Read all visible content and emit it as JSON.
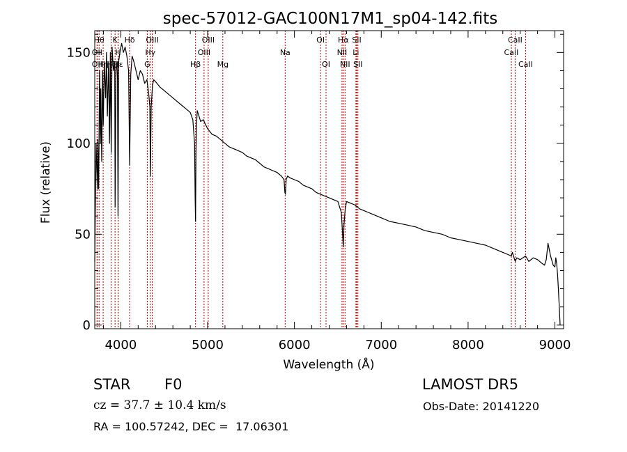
{
  "chart_data": {
    "type": "line",
    "title": "spec-57012-GAC100N17M1_sp04-142.fits",
    "xlabel": "Wavelength (Å)",
    "ylabel": "Flux (relative)",
    "xlim": [
      3700,
      9100
    ],
    "ylim": [
      -2,
      162
    ],
    "xticks": [
      4000,
      5000,
      6000,
      7000,
      8000,
      9000
    ],
    "yticks": [
      0,
      50,
      100,
      150
    ],
    "line_color": "#000000",
    "marker_color": "#aa0000",
    "series": [
      {
        "x": [
          3700,
          3715,
          3730,
          3735,
          3745,
          3755,
          3765,
          3770,
          3780,
          3790,
          3798,
          3810,
          3825,
          3835,
          3845,
          3860,
          3870,
          3880,
          3889,
          3900,
          3915,
          3930,
          3934,
          3945,
          3955,
          3962,
          3968,
          3975,
          3990,
          4010,
          4030,
          4050,
          4070,
          4090,
          4102,
          4115,
          4130,
          4150,
          4175,
          4200,
          4225,
          4250,
          4275,
          4300,
          4320,
          4335,
          4341,
          4350,
          4365,
          4380,
          4400,
          4450,
          4500,
          4550,
          4600,
          4650,
          4700,
          4750,
          4800,
          4830,
          4850,
          4856,
          4861,
          4866,
          4872,
          4880,
          4900,
          4920,
          4950,
          4980,
          5000,
          5050,
          5100,
          5150,
          5200,
          5250,
          5300,
          5350,
          5400,
          5450,
          5500,
          5550,
          5600,
          5650,
          5700,
          5750,
          5800,
          5850,
          5880,
          5890,
          5896,
          5905,
          5920,
          5950,
          6000,
          6050,
          6100,
          6150,
          6200,
          6250,
          6300,
          6350,
          6400,
          6450,
          6500,
          6540,
          6555,
          6563,
          6570,
          6585,
          6600,
          6650,
          6700,
          6750,
          6800,
          6850,
          6900,
          6950,
          7000,
          7100,
          7200,
          7300,
          7400,
          7500,
          7600,
          7700,
          7800,
          7900,
          8000,
          8100,
          8200,
          8300,
          8400,
          8450,
          8498,
          8510,
          8542,
          8560,
          8600,
          8662,
          8700,
          8750,
          8800,
          8850,
          8880,
          8900,
          8920,
          8950,
          8980,
          9000,
          9010,
          9020,
          9030,
          9040,
          9050,
          9060
        ],
        "y": [
          35,
          100,
          75,
          102,
          75,
          140,
          100,
          130,
          90,
          140,
          110,
          145,
          125,
          150,
          115,
          145,
          100,
          150,
          95,
          153,
          140,
          145,
          65,
          140,
          145,
          135,
          60,
          145,
          150,
          155,
          150,
          153,
          148,
          140,
          88,
          138,
          148,
          145,
          140,
          135,
          140,
          138,
          133,
          135,
          128,
          120,
          82,
          120,
          132,
          135,
          134,
          131,
          129,
          127,
          125,
          123,
          121,
          119,
          117,
          113,
          100,
          70,
          57,
          95,
          110,
          118,
          115,
          112,
          113,
          110,
          108,
          105,
          104,
          102,
          100,
          98,
          97,
          96,
          95,
          93,
          92,
          91,
          89,
          87,
          86,
          85,
          84,
          82,
          80,
          73,
          72,
          80,
          82,
          81,
          80,
          79,
          77,
          76,
          75,
          73,
          72,
          71,
          70,
          69,
          68,
          62,
          50,
          43,
          55,
          64,
          68,
          67,
          66,
          64,
          63,
          62,
          61,
          60,
          59,
          57,
          56,
          55,
          54,
          52,
          51,
          50,
          48,
          47,
          46,
          45,
          44,
          42,
          40,
          39,
          38,
          40,
          35,
          37,
          36,
          38,
          35,
          37,
          36,
          34,
          33,
          36,
          45,
          38,
          33,
          32,
          37,
          34,
          28,
          20,
          10,
          0
        ]
      }
    ],
    "line_markers": [
      {
        "label": "OII",
        "x": 3727,
        "row": 2
      },
      {
        "label": "Hθ",
        "x": 3750,
        "row": 0
      },
      {
        "label": "OII",
        "x": 3727,
        "row": 1
      },
      {
        "label": "Hη",
        "x": 3797,
        "row": 2
      },
      {
        "label": "Hζ",
        "x": 3889,
        "row": 2
      },
      {
        "label": "K",
        "x": 3934,
        "row": 0
      },
      {
        "label": "H",
        "x": 3969,
        "row": 1
      },
      {
        "label": "Hε",
        "x": 3970,
        "row": 2
      },
      {
        "label": "Hδ",
        "x": 4102,
        "row": 0
      },
      {
        "label": "Hγ",
        "x": 4340,
        "row": 1
      },
      {
        "label": "OIII",
        "x": 4363,
        "row": 0
      },
      {
        "label": "G",
        "x": 4305,
        "row": 2
      },
      {
        "label": "Hβ",
        "x": 4861,
        "row": 2
      },
      {
        "label": "OIII",
        "x": 4959,
        "row": 1
      },
      {
        "label": "OIII",
        "x": 5007,
        "row": 0
      },
      {
        "label": "Mg",
        "x": 5175,
        "row": 2
      },
      {
        "label": "Na",
        "x": 5893,
        "row": 1
      },
      {
        "label": "OI",
        "x": 6300,
        "row": 0
      },
      {
        "label": "OI",
        "x": 6364,
        "row": 2
      },
      {
        "label": "Hα",
        "x": 6563,
        "row": 0
      },
      {
        "label": "NII",
        "x": 6548,
        "row": 1
      },
      {
        "label": "NII",
        "x": 6583,
        "row": 2
      },
      {
        "label": "SII",
        "x": 6717,
        "row": 0
      },
      {
        "label": "Li",
        "x": 6708,
        "row": 1
      },
      {
        "label": "SII",
        "x": 6731,
        "row": 2
      },
      {
        "label": "CaII",
        "x": 8498,
        "row": 1
      },
      {
        "label": "CaII",
        "x": 8542,
        "row": 0
      },
      {
        "label": "CaII",
        "x": 8662,
        "row": 2
      }
    ],
    "grid": false,
    "legend": "none"
  },
  "info": {
    "class_label": "STAR",
    "subclass": "F0",
    "survey": "LAMOST DR5",
    "redshift": "cz = 37.7 ± 10.4 km/s",
    "obs_date": "Obs-Date: 20141220",
    "coords": "RA = 100.57242, DEC =  17.06301"
  }
}
